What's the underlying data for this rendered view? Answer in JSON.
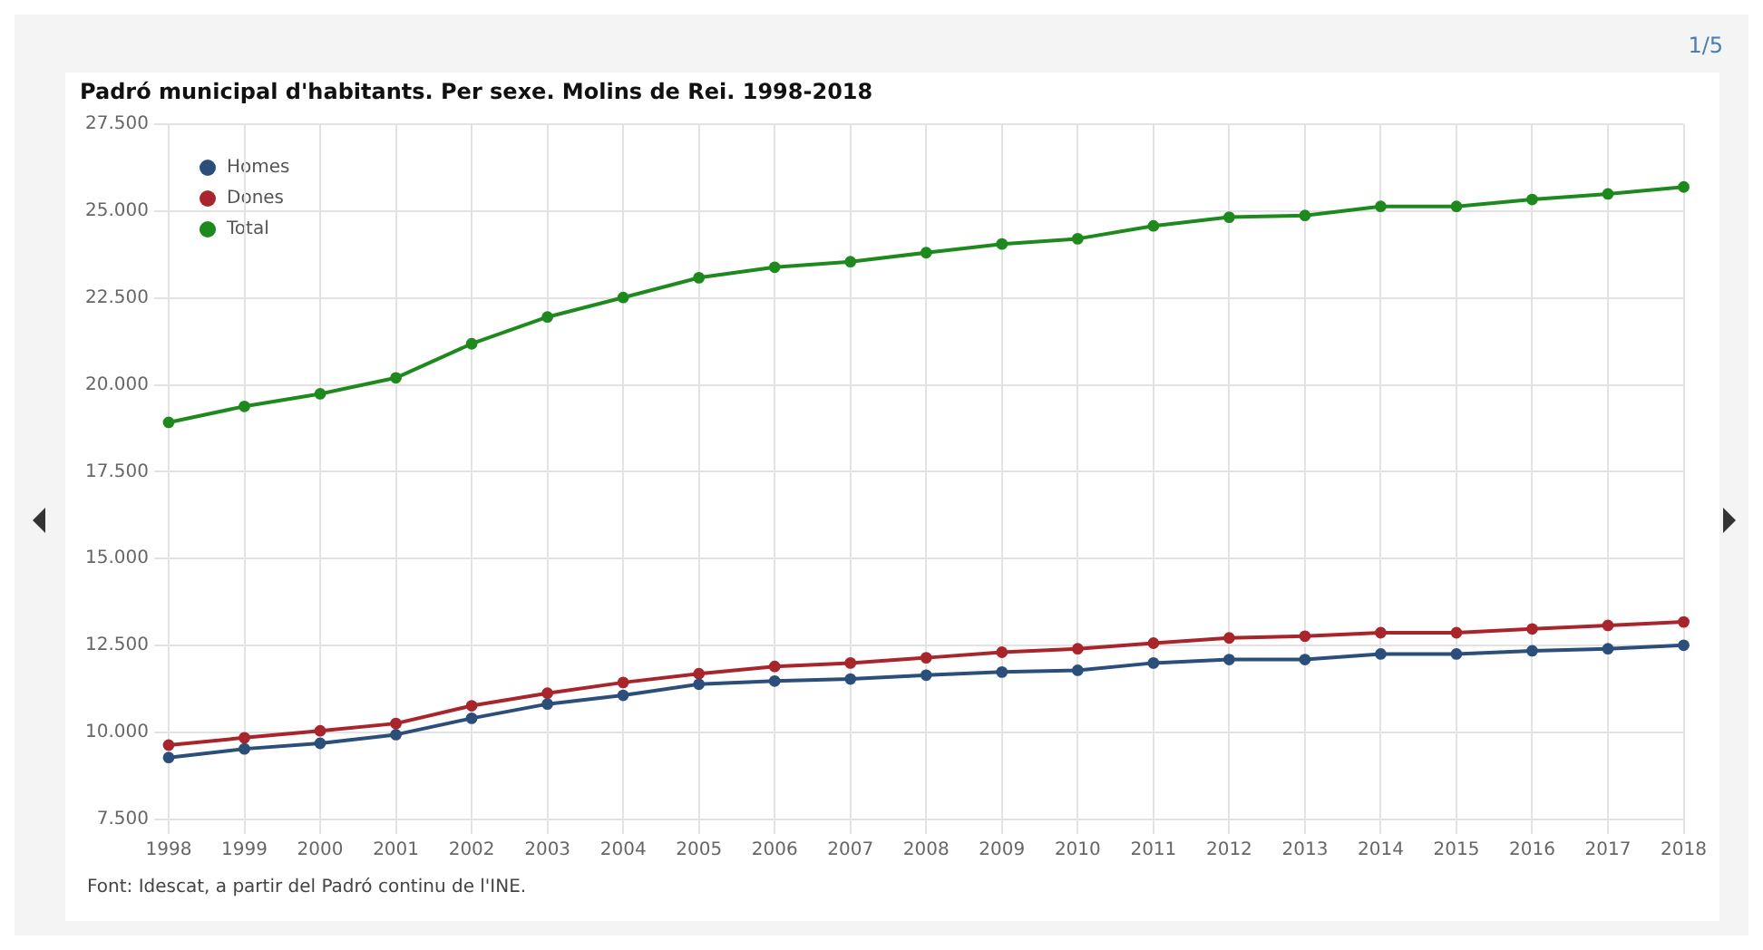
{
  "chart_data": {
    "type": "line",
    "title": "Padró municipal d'habitants. Per sexe. Molins de Rei. 1998-2018",
    "categories": [
      "1998",
      "1999",
      "2000",
      "2001",
      "2002",
      "2003",
      "2004",
      "2005",
      "2006",
      "2007",
      "2008",
      "2009",
      "2010",
      "2011",
      "2012",
      "2013",
      "2014",
      "2015",
      "2016",
      "2017",
      "2018"
    ],
    "series": [
      {
        "name": "Homes",
        "color": "#2b4f7a",
        "values": [
          9280,
          9530,
          9690,
          9940,
          10410,
          10820,
          11070,
          11390,
          11480,
          11540,
          11650,
          11740,
          11790,
          12000,
          12100,
          12100,
          12260,
          12260,
          12350,
          12410,
          12510
        ]
      },
      {
        "name": "Dones",
        "color": "#a8262b",
        "values": [
          9640,
          9850,
          10050,
          10260,
          10770,
          11130,
          11440,
          11690,
          11900,
          12000,
          12150,
          12310,
          12410,
          12570,
          12720,
          12770,
          12870,
          12870,
          12980,
          13080,
          13180
        ]
      },
      {
        "name": "Total",
        "color": "#1e8a1e",
        "values": [
          18920,
          19380,
          19740,
          20200,
          21180,
          21950,
          22510,
          23080,
          23380,
          23540,
          23800,
          24050,
          24200,
          24570,
          24820,
          24870,
          25130,
          25130,
          25330,
          25490,
          25690
        ]
      }
    ],
    "ylim": [
      7500,
      27500
    ],
    "yticks": [
      {
        "value": 7500,
        "label": "7.500"
      },
      {
        "value": 10000,
        "label": "10.000"
      },
      {
        "value": 12500,
        "label": "12.500"
      },
      {
        "value": 15000,
        "label": "15.000"
      },
      {
        "value": 17500,
        "label": "17.500"
      },
      {
        "value": 20000,
        "label": "20.000"
      },
      {
        "value": 22500,
        "label": "22.500"
      },
      {
        "value": 25000,
        "label": "25.000"
      },
      {
        "value": 27500,
        "label": "27.500"
      }
    ],
    "grid": true,
    "legend": "top left",
    "marker": "circle",
    "line_style": "solid",
    "annotations": [
      "1/5",
      "Font: Idescat, a partir del Padró continu de l'INE."
    ]
  }
}
